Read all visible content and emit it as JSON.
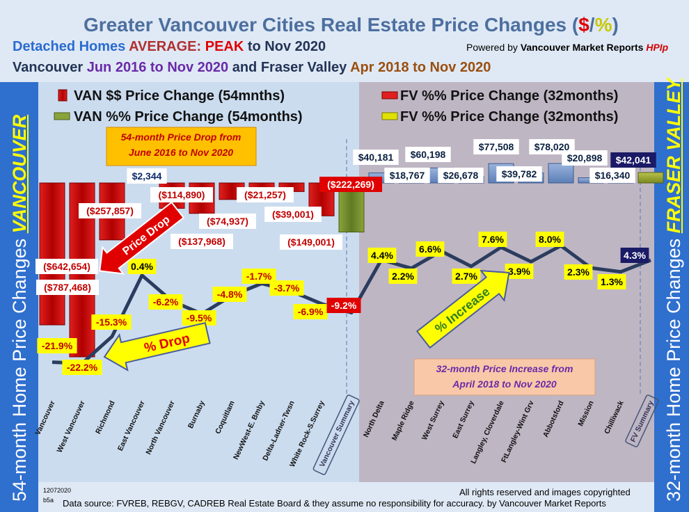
{
  "header": {
    "title_main": "Greater Vancouver Cities Real Estate Price Changes (",
    "title_dollar": "$",
    "title_slash": "/",
    "title_pct": "%",
    "title_close": ")",
    "sub1_a": "Detached Homes ",
    "sub1_b": "AVERAGE: ",
    "sub1_c": "PEAK",
    "sub1_d": " to Nov 2020",
    "powered_a": "Powered by ",
    "powered_b": "Vancouver Market Reports ",
    "powered_c": "HPIp",
    "sub2_a": "Vancouver ",
    "sub2_b": "Jun 2016 to Nov 2020",
    "sub2_c": " and Fraser Valley ",
    "sub2_d": "Apr 2018 to Nov 2020"
  },
  "side": {
    "left_a": "54-month Home Price Changes ",
    "left_b": "VANCOUVER",
    "right_a": "32-month Home Price  Changes ",
    "right_b": "FRASER VALLEY"
  },
  "footer": {
    "id1": "12072020",
    "id2": "b5a",
    "copyright": "All rights reserved and  images copyrighted",
    "source": "Data source: FVREB, REBGV, CADREB Real Estate Board & they assume no responsibility for accuracy. by Vancouver Market Reports"
  },
  "colors": {
    "van_bar": "#c00000",
    "van_summary_bar": "#6f8a2a",
    "fv_bar": "#6d8fc7",
    "fv_summary_bar": "#8a9a30",
    "line": "#2b3d5e",
    "label_yellow": "#ffff00",
    "label_red": "#e00000",
    "fv_panel": "#bfb6c4",
    "van_panel": "#cbdcef"
  },
  "chart_data": {
    "type": "bar",
    "categories": [
      "Vancouver",
      "West Vancouver",
      "Richmond",
      "East Vancouver",
      "North Vancouver",
      "Burnaby",
      "Coquitlam",
      "NewWest-E. Bmby",
      "Delta-Ladner-Twsn",
      "White Rock-S.Surrey",
      "Vancouver Summary",
      "North Delta",
      "Maple Ridge",
      "West Surrey",
      "East Surrey",
      "Langley, Cloverdale",
      "FtLangley-Wint Grv",
      "Abbotsford",
      "Mission",
      "Chilliwack",
      "FV Summary"
    ],
    "series": [
      {
        "name": "VAN $$ Price Change (54mnths)",
        "values": [
          -642654,
          -787468,
          -257857,
          2344,
          -114890,
          -137968,
          -74937,
          -21257,
          -39001,
          -149001,
          -222269,
          null,
          null,
          null,
          null,
          null,
          null,
          null,
          null,
          null,
          null
        ],
        "labels": [
          "($642,654)",
          "($787,468)",
          "($257,857)",
          "$2,344",
          "($114,890)",
          "($137,968)",
          "($74,937)",
          "($21,257)",
          "($39,001)",
          "($149,001)",
          "($222,269)",
          "",
          "",
          "",
          "",
          "",
          "",
          "",
          "",
          "",
          ""
        ]
      },
      {
        "name": "VAN %% Price Change (54months)",
        "values": [
          -21.9,
          -22.2,
          -15.3,
          0.4,
          -6.2,
          -9.5,
          -4.8,
          -1.7,
          -3.7,
          -6.9,
          -9.2,
          null,
          null,
          null,
          null,
          null,
          null,
          null,
          null,
          null,
          null
        ],
        "labels": [
          "-21.9%",
          "-22.2%",
          "-15.3%",
          "0.4%",
          "-6.2%",
          "-9.5%",
          "-4.8%",
          "-1.7%",
          "-3.7%",
          "-6.9%",
          "-9.2%",
          "",
          "",
          "",
          "",
          "",
          "",
          "",
          "",
          "",
          ""
        ]
      },
      {
        "name": "FV %% Price Change (32months)",
        "values": [
          null,
          null,
          null,
          null,
          null,
          null,
          null,
          null,
          null,
          null,
          null,
          40181,
          18767,
          60198,
          26678,
          77508,
          39782,
          78020,
          20898,
          16340,
          42041
        ],
        "labels": [
          "",
          "",
          "",
          "",
          "",
          "",
          "",
          "",
          "",
          "",
          "",
          "$40,181",
          "$18,767",
          "$60,198",
          "$26,678",
          "$77,508",
          "$39,782",
          "$78,020",
          "$20,898",
          "$16,340",
          "$42,041"
        ]
      },
      {
        "name": "FV %% Price Change (32months)",
        "values": [
          null,
          null,
          null,
          null,
          null,
          null,
          null,
          null,
          null,
          null,
          null,
          4.4,
          2.2,
          6.6,
          2.7,
          7.6,
          3.9,
          8.0,
          2.3,
          1.3,
          4.3
        ],
        "labels": [
          "",
          "",
          "",
          "",
          "",
          "",
          "",
          "",
          "",
          "",
          "",
          "4.4%",
          "2.2%",
          "6.6%",
          "2.7%",
          "7.6%",
          "3.9%",
          "8.0%",
          "2.3%",
          "1.3%",
          "4.3%"
        ]
      }
    ],
    "legend": [
      {
        "label": "VAN $$ Price Change (54mnths)",
        "color": "#c00000"
      },
      {
        "label": "VAN %% Price Change (54months)",
        "color": "#6f8a2a"
      },
      {
        "label": "FV %% Price Change (32months)",
        "color": "#c00000"
      },
      {
        "label": "FV %% Price Change (32months)",
        "color": "#d8d800"
      }
    ],
    "annotations": {
      "van_box": [
        "54-month Price Drop from",
        "June 2016 to Nov 2020"
      ],
      "fv_box": [
        "32-month Price Increase from",
        "April 2018 to Nov 2020"
      ],
      "price_drop": "Price Drop",
      "pct_drop": "% Drop",
      "pct_increase": "% Increase"
    }
  }
}
